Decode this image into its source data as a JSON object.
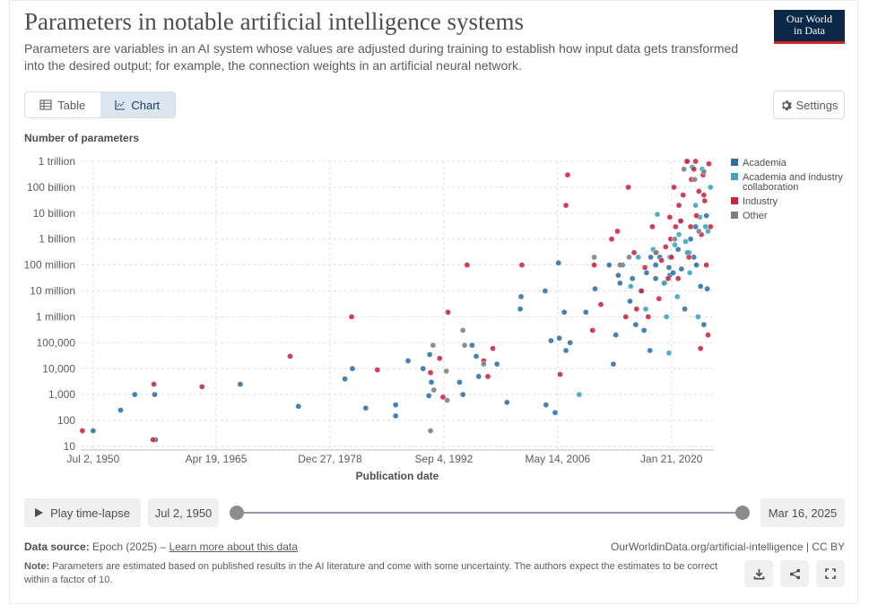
{
  "header": {
    "title": "Parameters in notable artificial intelligence systems",
    "subtitle": "Parameters are variables in an AI system whose values are adjusted during training to establish how input data gets transformed into the desired output; for example, the connection weights in an artificial neural network.",
    "logo_line1": "Our World",
    "logo_line2": "in Data"
  },
  "tabs": {
    "table_label": "Table",
    "chart_label": "Chart"
  },
  "settings_label": "Settings",
  "colors": {
    "Academia": "#2c6fa8",
    "Academia and industry collaboration": "#3ea3c2",
    "Industry": "#c8243d",
    "Other": "#7a7f86",
    "brand": "#0b2847",
    "accent": "#ce261e"
  },
  "chart_data": {
    "type": "scatter",
    "ylabel": "Number of parameters",
    "xlabel": "Publication date",
    "y_scale": "log",
    "ylim": [
      10,
      1000000000000
    ],
    "xlim": [
      1949.0,
      2025.2
    ],
    "y_ticks": [
      {
        "value": 10,
        "label": "10"
      },
      {
        "value": 100,
        "label": "100"
      },
      {
        "value": 1000,
        "label": "1,000"
      },
      {
        "value": 10000,
        "label": "10,000"
      },
      {
        "value": 100000,
        "label": "100,000"
      },
      {
        "value": 1000000,
        "label": "1 million"
      },
      {
        "value": 10000000,
        "label": "10 million"
      },
      {
        "value": 100000000,
        "label": "100 million"
      },
      {
        "value": 1000000000,
        "label": "1 billion"
      },
      {
        "value": 10000000000,
        "label": "10 billion"
      },
      {
        "value": 100000000000,
        "label": "100 billion"
      },
      {
        "value": 1000000000000,
        "label": "1 trillion"
      }
    ],
    "x_ticks": [
      {
        "value": 1950.5,
        "label": "Jul 2, 1950"
      },
      {
        "value": 1965.3,
        "label": "Apr 19, 1965"
      },
      {
        "value": 1979.0,
        "label": "Dec 27, 1978"
      },
      {
        "value": 1992.7,
        "label": "Sep 4, 1992"
      },
      {
        "value": 2006.4,
        "label": "May 14, 2006"
      },
      {
        "value": 2020.1,
        "label": "Jan 21, 2020"
      }
    ],
    "legend_position": "right",
    "series": [
      {
        "name": "Academia",
        "points": [
          [
            1950.5,
            40
          ],
          [
            1953.8,
            250
          ],
          [
            1955.5,
            1000
          ],
          [
            1957.9,
            1000
          ],
          [
            1958.0,
            18
          ],
          [
            1968.2,
            2500
          ],
          [
            1975.2,
            350
          ],
          [
            1980.8,
            4000
          ],
          [
            1981.7,
            10000
          ],
          [
            1983.3,
            300
          ],
          [
            1986.9,
            400
          ],
          [
            1986.9,
            150
          ],
          [
            1988.4,
            20000
          ],
          [
            1990.2,
            10000
          ],
          [
            1990.9,
            900
          ],
          [
            1991.0,
            35000
          ],
          [
            1991.2,
            3000
          ],
          [
            1994.6,
            3000
          ],
          [
            1995.0,
            1000
          ],
          [
            1996.1,
            80000
          ],
          [
            1996.6,
            30000
          ],
          [
            1996.9,
            5000
          ],
          [
            1999.1,
            15000
          ],
          [
            2000.3,
            500
          ],
          [
            2001.9,
            2000000
          ],
          [
            2002.0,
            6000000
          ],
          [
            2004.9,
            10000000
          ],
          [
            2005.0,
            400
          ],
          [
            2005.6,
            120000
          ],
          [
            2006.1,
            200
          ],
          [
            2006.5,
            120000000
          ],
          [
            2006.6,
            150000
          ],
          [
            2007.2,
            1500000
          ],
          [
            2007.4,
            50000
          ],
          [
            2007.9,
            100000
          ],
          [
            2009.8,
            1500000
          ],
          [
            2010.9,
            12000000
          ],
          [
            2012.6,
            100000000
          ],
          [
            2013.1,
            15000
          ],
          [
            2013.4,
            200000
          ],
          [
            2013.9,
            20000000
          ],
          [
            2013.7,
            40000000
          ],
          [
            2014.2,
            100000000
          ],
          [
            2015.1,
            4000000
          ],
          [
            2015.4,
            30000000
          ],
          [
            2016.4,
            10000000
          ],
          [
            2016.8,
            300000
          ],
          [
            2017.1,
            50000000
          ],
          [
            2017.6,
            200000000
          ],
          [
            2018.2,
            100000000
          ],
          [
            2018.2,
            30000000
          ],
          [
            2018.7,
            200000000
          ],
          [
            2019.3,
            20000000
          ],
          [
            2019.9,
            40000000
          ],
          [
            2020.3,
            50000000
          ],
          [
            2020.9,
            400000000
          ],
          [
            2021.3,
            70000000
          ],
          [
            2021.7,
            2000000
          ],
          [
            2022.2,
            300000000
          ],
          [
            2022.8,
            200000000
          ],
          [
            2023.1,
            100000000
          ],
          [
            2023.6,
            15000000
          ],
          [
            2024.0,
            500000
          ],
          [
            2024.4,
            12000000
          ],
          [
            2024.3,
            8000000000
          ],
          [
            2023.0,
            3000000000
          ],
          [
            2022.4,
            1000000000
          ],
          [
            2019.8,
            80000000
          ],
          [
            2015.8,
            500000
          ],
          [
            2017.5,
            50000
          ]
        ]
      },
      {
        "name": "Academia and industry collaboration",
        "points": [
          [
            2009.0,
            1000
          ],
          [
            2015.2,
            15000000
          ],
          [
            2017.0,
            2000000
          ],
          [
            2018.4,
            9000000000
          ],
          [
            2019.2,
            20000000
          ],
          [
            2019.5,
            1000000
          ],
          [
            2019.8,
            40000
          ],
          [
            2020.5,
            600000000
          ],
          [
            2020.8,
            6000000
          ],
          [
            2021.3,
            5000000000
          ],
          [
            2021.8,
            800000000
          ],
          [
            2022.0,
            300000000
          ],
          [
            2022.3,
            50000000
          ],
          [
            2022.6,
            600000000000
          ],
          [
            2023.0,
            20000000000
          ],
          [
            2023.5,
            7000000000
          ],
          [
            2023.8,
            500000000000
          ],
          [
            2024.2,
            3000000000
          ],
          [
            2024.5,
            2000000000
          ],
          [
            2024.8,
            100000000000
          ],
          [
            2019.9,
            200000000
          ],
          [
            2021.0,
            1500000000
          ],
          [
            2023.3,
            1000000
          ],
          [
            2016.1,
            200000000
          ],
          [
            2017.9,
            400000000
          ]
        ]
      },
      {
        "name": "Industry",
        "points": [
          [
            1949.2,
            40
          ],
          [
            1957.7,
            18
          ],
          [
            1957.8,
            2500
          ],
          [
            1963.6,
            2000
          ],
          [
            1974.2,
            30000
          ],
          [
            1981.6,
            1000000
          ],
          [
            1984.7,
            9000
          ],
          [
            1991.1,
            7000
          ],
          [
            1992.2,
            25000
          ],
          [
            1992.6,
            800
          ],
          [
            1993.2,
            1500000
          ],
          [
            1995.5,
            100000000
          ],
          [
            1997.5,
            20000
          ],
          [
            1998.0,
            5000
          ],
          [
            1998.6,
            60000
          ],
          [
            2002.1,
            100000000
          ],
          [
            2006.7,
            6000
          ],
          [
            2007.6,
            300000000000
          ],
          [
            2007.4,
            20000000000
          ],
          [
            2010.6,
            300000
          ],
          [
            2010.8,
            100000000
          ],
          [
            2011.6,
            3000000
          ],
          [
            2012.9,
            1000000000
          ],
          [
            2013.6,
            2000000000
          ],
          [
            2014.6,
            1000000
          ],
          [
            2014.9,
            100000000000
          ],
          [
            2015.6,
            300000000
          ],
          [
            2015.9,
            2000000
          ],
          [
            2016.5,
            10000000
          ],
          [
            2016.9,
            80000000
          ],
          [
            2017.3,
            1000000
          ],
          [
            2017.8,
            3000000000
          ],
          [
            2018.3,
            300000000
          ],
          [
            2018.6,
            5000000
          ],
          [
            2018.9,
            150000000
          ],
          [
            2019.4,
            500000000
          ],
          [
            2019.7,
            30000000
          ],
          [
            2019.9,
            7000000000
          ],
          [
            2020.1,
            200000000
          ],
          [
            2020.4,
            100000000000
          ],
          [
            2020.6,
            3000000000
          ],
          [
            2020.9,
            30000000
          ],
          [
            2021.2,
            5000000000
          ],
          [
            2021.5,
            50000000000
          ],
          [
            2021.9,
            1000000000000
          ],
          [
            2022.2,
            200000000
          ],
          [
            2022.5,
            200000000000
          ],
          [
            2022.8,
            500000000000
          ],
          [
            2023.1,
            8000000000
          ],
          [
            2023.4,
            70000000000
          ],
          [
            2023.7,
            1500000000
          ],
          [
            2023.9,
            300000000000
          ],
          [
            2024.1,
            30000000000
          ],
          [
            2024.3,
            100000000
          ],
          [
            2024.6,
            800000000000
          ],
          [
            2024.8,
            3000000000
          ],
          [
            2023.6,
            60000
          ],
          [
            2024.5,
            200000
          ],
          [
            2022.0,
            1000000000000
          ],
          [
            2023.0,
            1000000000000
          ],
          [
            2021.0,
            20000000000
          ],
          [
            2020.0,
            1000000000
          ],
          [
            2022.4,
            3000000000
          ],
          [
            2024.0,
            50000000000
          ]
        ]
      },
      {
        "name": "Other",
        "points": [
          [
            1991.1,
            40
          ],
          [
            1991.4,
            80000
          ],
          [
            1991.5,
            1500
          ],
          [
            1993.0,
            8000
          ],
          [
            1993.1,
            600
          ],
          [
            1995.0,
            300000
          ],
          [
            1995.2,
            80000
          ],
          [
            1997.5,
            15000
          ],
          [
            2010.8,
            200000000
          ],
          [
            2013.9,
            100000000
          ],
          [
            2015.0,
            200000000
          ],
          [
            2018.2,
            300000000
          ],
          [
            2020.5,
            1000000000
          ],
          [
            2021.6,
            500000000000
          ],
          [
            2022.9,
            200000000000
          ],
          [
            2023.4,
            2000000000
          ],
          [
            2024.0,
            400000000000
          ]
        ]
      }
    ]
  },
  "controls": {
    "play_label": "Play time-lapse",
    "start_date": "Jul 2, 1950",
    "end_date": "Mar 16, 2025",
    "range_start": 0,
    "range_end": 1
  },
  "footer": {
    "source_label": "Data source:",
    "source_text": "Epoch (2025) –",
    "learn_more": "Learn more about this data",
    "url_text": "OurWorldinData.org/artificial-intelligence | CC BY",
    "note_label": "Note:",
    "note_text": "Parameters are estimated based on published results in the AI literature and come with some uncertainty. The authors expect the estimates to be correct within a factor of 10."
  }
}
